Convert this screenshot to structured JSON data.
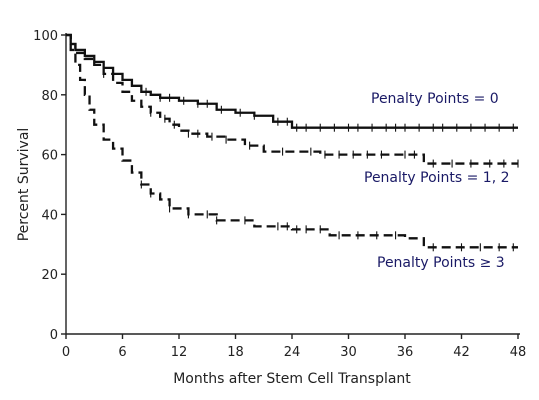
{
  "chart_data": {
    "type": "line",
    "chart_style": "kaplan-meier step curves with censor tick marks",
    "xlabel": "Months after Stem Cell Transplant",
    "ylabel": "Percent Survival",
    "xlim": [
      0,
      48
    ],
    "ylim": [
      0,
      100
    ],
    "x_ticks": [
      0,
      6,
      12,
      18,
      24,
      30,
      36,
      42,
      48
    ],
    "y_ticks": [
      0,
      20,
      40,
      60,
      80,
      100
    ],
    "grid": false,
    "legend": "none (series labels placed next to curves)",
    "label_color": "#1a1a66",
    "series": [
      {
        "name": "Penalty Points = 0",
        "line_style": "solid",
        "x": [
          0,
          0.5,
          1,
          2,
          3,
          4,
          5,
          6,
          7,
          8,
          9,
          10,
          12,
          14,
          16,
          18,
          20,
          22,
          24,
          30,
          36,
          42,
          48
        ],
        "y": [
          100,
          97,
          95,
          93,
          91,
          89,
          87,
          85,
          83,
          81,
          80,
          79,
          78,
          77,
          75,
          74,
          73,
          71,
          69,
          69,
          69,
          69,
          69
        ],
        "censored_x": [
          8.5,
          10,
          11,
          12.5,
          14,
          15,
          16.5,
          18.5,
          20,
          22.5,
          23.5,
          24.5,
          25.5,
          27,
          28.5,
          30,
          31,
          32.5,
          34,
          35,
          36,
          37.5,
          39,
          40,
          41.5,
          43,
          44.5,
          46,
          47.5
        ]
      },
      {
        "name": "Penalty Points = 1, 2",
        "line_style": "dashed",
        "x": [
          0,
          0.5,
          1,
          2,
          3,
          4,
          5,
          6,
          7,
          8,
          9,
          10,
          11,
          12,
          13,
          15,
          17,
          19,
          21,
          27,
          36,
          38,
          48
        ],
        "y": [
          100,
          97,
          94,
          92,
          90,
          87,
          84,
          81,
          78,
          76,
          74,
          72,
          70,
          68,
          67,
          66,
          65,
          63,
          61,
          60,
          60,
          57,
          57
        ],
        "censored_x": [
          4,
          9,
          10.5,
          11.5,
          13,
          14,
          15.5,
          17,
          19.5,
          23,
          26,
          27.5,
          29,
          30.5,
          32,
          33.5,
          36,
          37,
          39,
          41,
          43,
          45,
          46.5,
          48
        ]
      },
      {
        "name": "Penalty Points ≥ 3",
        "line_style": "dashed",
        "x": [
          0,
          0.5,
          1,
          1.5,
          2,
          2.5,
          3,
          4,
          5,
          6,
          7,
          8,
          9,
          10,
          11,
          13,
          16,
          20,
          24,
          28,
          36,
          38,
          48
        ],
        "y": [
          100,
          95,
          90,
          85,
          80,
          75,
          70,
          65,
          62,
          58,
          54,
          50,
          47,
          45,
          42,
          40,
          38,
          36,
          35,
          33,
          32,
          29,
          29
        ],
        "censored_x": [
          8,
          9,
          11,
          13,
          15,
          16,
          19,
          22.5,
          23.5,
          24.5,
          25.5,
          27,
          29,
          31,
          33,
          35,
          39,
          42,
          44,
          46,
          47.5
        ]
      }
    ]
  }
}
